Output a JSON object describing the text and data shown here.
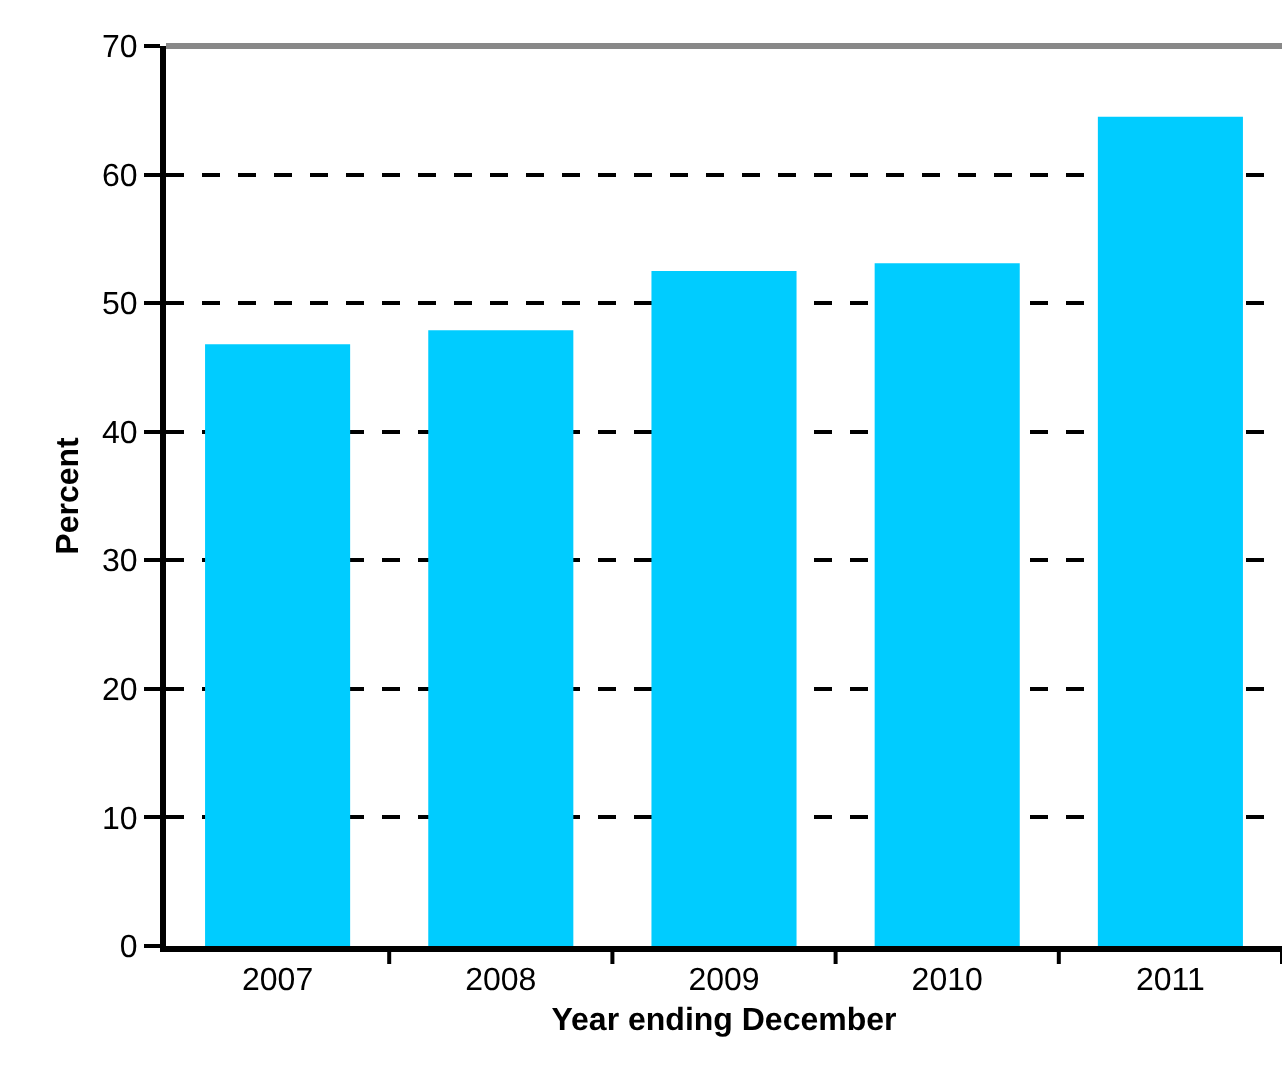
{
  "chart_data": {
    "type": "bar",
    "xlabel": "Year ending December",
    "ylabel": "Percent",
    "categories": [
      "2007",
      "2008",
      "2009",
      "2010",
      "2011"
    ],
    "values": [
      46.8,
      47.9,
      52.5,
      53.1,
      64.5
    ],
    "color": "#00ccff",
    "ylim": [
      0,
      70
    ],
    "yticks": [
      0,
      10,
      20,
      30,
      40,
      50,
      60,
      70
    ],
    "grid": "y"
  }
}
